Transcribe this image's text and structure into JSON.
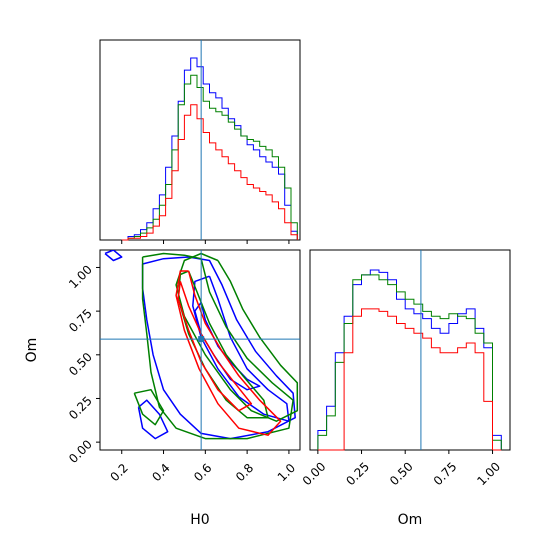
{
  "chart_data": {
    "type": "corner",
    "parameters": [
      "H0",
      "Om"
    ],
    "truth": {
      "H0": 0.58,
      "Om": 0.59
    },
    "colors": {
      "series_a": "#0000ff",
      "series_b": "#008000",
      "series_c": "#ff0000",
      "truth": "#1f77b4"
    },
    "h0_ticks": [
      "0.2",
      "0.4",
      "0.6",
      "0.8",
      "1.0"
    ],
    "om_ticks": [
      "0.00",
      "0.25",
      "0.50",
      "0.75",
      "1.00"
    ],
    "h0_hist": {
      "edges": [
        0.2,
        0.23,
        0.26,
        0.29,
        0.32,
        0.35,
        0.38,
        0.41,
        0.44,
        0.47,
        0.5,
        0.53,
        0.56,
        0.59,
        0.62,
        0.65,
        0.68,
        0.71,
        0.74,
        0.77,
        0.8,
        0.83,
        0.86,
        0.89,
        0.92,
        0.95,
        0.98,
        1.01,
        1.04
      ],
      "series": [
        {
          "name": "",
          "color": "#0000ff",
          "values": [
            0,
            2,
            3,
            6,
            10,
            18,
            26,
            42,
            60,
            80,
            98,
            105,
            100,
            90,
            85,
            82,
            76,
            70,
            66,
            60,
            55,
            52,
            48,
            45,
            42,
            38,
            20,
            5
          ]
        },
        {
          "name": "",
          "color": "#008000",
          "values": [
            0,
            1,
            2,
            4,
            7,
            12,
            20,
            32,
            52,
            78,
            90,
            95,
            88,
            80,
            76,
            74,
            72,
            68,
            64,
            60,
            58,
            57,
            54,
            52,
            48,
            42,
            30,
            10
          ]
        },
        {
          "name": "",
          "color": "#ff0000",
          "values": [
            0,
            1,
            1,
            2,
            4,
            8,
            14,
            24,
            40,
            58,
            72,
            78,
            70,
            62,
            56,
            52,
            48,
            44,
            40,
            36,
            32,
            30,
            28,
            26,
            22,
            18,
            10,
            3
          ]
        }
      ]
    },
    "om_hist": {
      "edges": [
        0.0,
        0.05,
        0.1,
        0.15,
        0.2,
        0.25,
        0.3,
        0.35,
        0.4,
        0.45,
        0.5,
        0.55,
        0.6,
        0.65,
        0.7,
        0.75,
        0.8,
        0.85,
        0.9,
        0.95,
        1.0,
        1.05
      ],
      "series": [
        {
          "name": "",
          "color": "#0000ff",
          "values": [
            8,
            18,
            40,
            55,
            68,
            72,
            74,
            73,
            70,
            62,
            58,
            56,
            54,
            50,
            48,
            52,
            56,
            58,
            50,
            42,
            6
          ]
        },
        {
          "name": "",
          "color": "#008000",
          "values": [
            6,
            14,
            36,
            52,
            70,
            72,
            72,
            70,
            68,
            65,
            62,
            60,
            57,
            55,
            54,
            56,
            55,
            54,
            48,
            44,
            4
          ]
        },
        {
          "name": "",
          "color": "#ff0000",
          "values": [
            0,
            0,
            0,
            40,
            55,
            58,
            58,
            57,
            55,
            52,
            50,
            48,
            46,
            42,
            40,
            40,
            42,
            44,
            40,
            20,
            0
          ]
        }
      ]
    },
    "contours": [
      {
        "color": "#0000ff",
        "points": [
          [
            0.62,
            0.95
          ],
          [
            0.66,
            0.82
          ],
          [
            0.72,
            0.6
          ],
          [
            0.8,
            0.42
          ],
          [
            0.9,
            0.3
          ],
          [
            0.99,
            0.22
          ],
          [
            1.0,
            0.12
          ],
          [
            0.88,
            0.16
          ],
          [
            0.76,
            0.26
          ],
          [
            0.66,
            0.42
          ],
          [
            0.58,
            0.6
          ],
          [
            0.54,
            0.78
          ],
          [
            0.55,
            0.92
          ],
          [
            0.62,
            0.95
          ]
        ]
      },
      {
        "color": "#0000ff",
        "points": [
          [
            0.58,
            0.8
          ],
          [
            0.6,
            0.7
          ],
          [
            0.66,
            0.55
          ],
          [
            0.72,
            0.46
          ],
          [
            0.8,
            0.36
          ],
          [
            0.86,
            0.32
          ],
          [
            0.8,
            0.3
          ],
          [
            0.72,
            0.36
          ],
          [
            0.64,
            0.5
          ],
          [
            0.58,
            0.62
          ],
          [
            0.55,
            0.75
          ],
          [
            0.58,
            0.8
          ]
        ]
      },
      {
        "color": "#0000ff",
        "points": [
          [
            0.3,
            1.02
          ],
          [
            0.4,
            1.05
          ],
          [
            0.52,
            1.06
          ],
          [
            0.62,
            1.04
          ],
          [
            0.68,
            0.9
          ],
          [
            0.75,
            0.7
          ],
          [
            0.84,
            0.52
          ],
          [
            0.94,
            0.38
          ],
          [
            1.02,
            0.28
          ],
          [
            1.03,
            0.14
          ],
          [
            0.9,
            0.06
          ],
          [
            0.72,
            0.02
          ],
          [
            0.58,
            0.05
          ],
          [
            0.48,
            0.16
          ],
          [
            0.4,
            0.3
          ],
          [
            0.35,
            0.5
          ],
          [
            0.32,
            0.7
          ],
          [
            0.3,
            0.88
          ],
          [
            0.3,
            1.02
          ]
        ]
      },
      {
        "color": "#0000ff",
        "points": [
          [
            0.12,
            1.08
          ],
          [
            0.16,
            1.04
          ],
          [
            0.2,
            1.06
          ],
          [
            0.16,
            1.1
          ],
          [
            0.12,
            1.08
          ]
        ]
      },
      {
        "color": "#0000ff",
        "points": [
          [
            0.28,
            0.2
          ],
          [
            0.3,
            0.08
          ],
          [
            0.36,
            0.02
          ],
          [
            0.42,
            0.06
          ],
          [
            0.38,
            0.16
          ],
          [
            0.32,
            0.24
          ],
          [
            0.28,
            0.2
          ]
        ]
      },
      {
        "color": "#008000",
        "points": [
          [
            0.66,
            1.04
          ],
          [
            0.72,
            0.92
          ],
          [
            0.78,
            0.76
          ],
          [
            0.86,
            0.6
          ],
          [
            0.96,
            0.44
          ],
          [
            1.04,
            0.34
          ],
          [
            1.04,
            0.18
          ],
          [
            0.94,
            0.12
          ],
          [
            0.82,
            0.18
          ],
          [
            0.72,
            0.3
          ],
          [
            0.6,
            0.5
          ],
          [
            0.5,
            0.72
          ],
          [
            0.46,
            0.9
          ],
          [
            0.5,
            1.04
          ],
          [
            0.58,
            1.08
          ],
          [
            0.66,
            1.04
          ]
        ]
      },
      {
        "color": "#008000",
        "points": [
          [
            0.52,
            0.98
          ],
          [
            0.56,
            0.86
          ],
          [
            0.62,
            0.68
          ],
          [
            0.7,
            0.5
          ],
          [
            0.78,
            0.38
          ],
          [
            0.88,
            0.24
          ],
          [
            0.9,
            0.14
          ],
          [
            0.8,
            0.14
          ],
          [
            0.7,
            0.24
          ],
          [
            0.6,
            0.42
          ],
          [
            0.52,
            0.62
          ],
          [
            0.47,
            0.82
          ],
          [
            0.48,
            0.96
          ],
          [
            0.52,
            0.98
          ]
        ]
      },
      {
        "color": "#008000",
        "points": [
          [
            0.3,
            1.06
          ],
          [
            0.4,
            1.08
          ],
          [
            0.5,
            1.07
          ],
          [
            0.58,
            1.05
          ],
          [
            0.62,
            0.86
          ],
          [
            0.7,
            0.66
          ],
          [
            0.8,
            0.48
          ],
          [
            0.92,
            0.34
          ],
          [
            1.02,
            0.24
          ],
          [
            1.0,
            0.08
          ],
          [
            0.8,
            0.02
          ],
          [
            0.6,
            0.02
          ],
          [
            0.46,
            0.08
          ],
          [
            0.38,
            0.2
          ],
          [
            0.34,
            0.4
          ],
          [
            0.32,
            0.62
          ],
          [
            0.3,
            0.82
          ],
          [
            0.3,
            1.06
          ]
        ]
      },
      {
        "color": "#008000",
        "points": [
          [
            0.26,
            0.28
          ],
          [
            0.3,
            0.16
          ],
          [
            0.36,
            0.1
          ],
          [
            0.4,
            0.18
          ],
          [
            0.34,
            0.3
          ],
          [
            0.26,
            0.28
          ]
        ]
      },
      {
        "color": "#ff0000",
        "points": [
          [
            0.52,
            0.98
          ],
          [
            0.55,
            0.84
          ],
          [
            0.6,
            0.68
          ],
          [
            0.68,
            0.52
          ],
          [
            0.76,
            0.38
          ],
          [
            0.86,
            0.24
          ],
          [
            0.96,
            0.12
          ],
          [
            0.9,
            0.04
          ],
          [
            0.76,
            0.08
          ],
          [
            0.66,
            0.22
          ],
          [
            0.57,
            0.42
          ],
          [
            0.5,
            0.64
          ],
          [
            0.46,
            0.84
          ],
          [
            0.48,
            0.98
          ],
          [
            0.52,
            0.98
          ]
        ]
      },
      {
        "color": "#ff0000",
        "points": [
          [
            0.48,
            0.92
          ],
          [
            0.52,
            0.78
          ],
          [
            0.58,
            0.62
          ],
          [
            0.66,
            0.46
          ],
          [
            0.74,
            0.34
          ],
          [
            0.82,
            0.22
          ],
          [
            0.76,
            0.18
          ],
          [
            0.66,
            0.3
          ],
          [
            0.58,
            0.46
          ],
          [
            0.52,
            0.64
          ],
          [
            0.47,
            0.82
          ],
          [
            0.48,
            0.92
          ]
        ]
      }
    ]
  }
}
